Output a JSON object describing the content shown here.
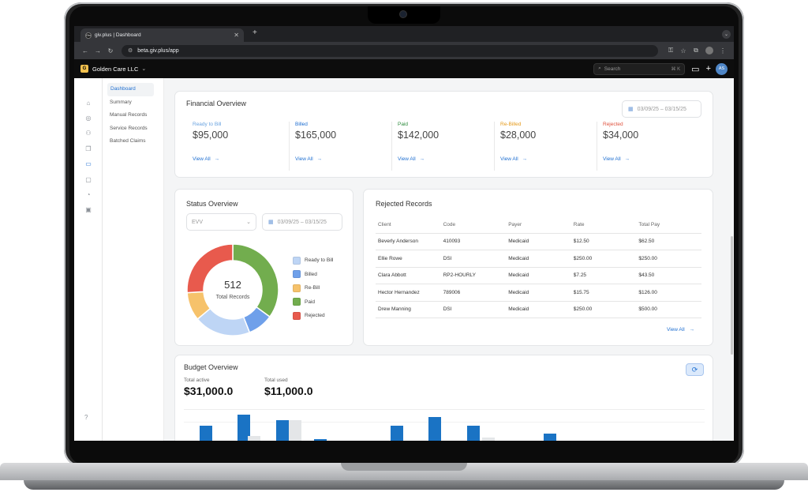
{
  "browser": {
    "tab_title": "giv.plus | Dashboard",
    "tab_favicon": "Giv",
    "url": "beta.giv.plus/app"
  },
  "header": {
    "org_initial": "G",
    "org_name": "Golden Care LLC",
    "search_placeholder": "Search",
    "search_shortcut": "⌘ K",
    "avatar_initials": "AS"
  },
  "sidebar": {
    "items": [
      {
        "label": "Dashboard",
        "active": true
      },
      {
        "label": "Summary"
      },
      {
        "label": "Manual Records"
      },
      {
        "label": "Service Records"
      },
      {
        "label": "Batched Claims"
      }
    ]
  },
  "financial": {
    "title": "Financial Overview",
    "date_range": "03/09/25 – 03/15/25",
    "view_all": "View All",
    "columns": [
      {
        "label": "Ready to Bill",
        "value": "$95,000",
        "color": "#6aa3e0"
      },
      {
        "label": "Billed",
        "value": "$165,000",
        "color": "#1f6fd1"
      },
      {
        "label": "Paid",
        "value": "$142,000",
        "color": "#2e8b3e"
      },
      {
        "label": "Re-Billed",
        "value": "$28,000",
        "color": "#e59a1a"
      },
      {
        "label": "Rejected",
        "value": "$34,000",
        "color": "#e0533f"
      }
    ]
  },
  "status": {
    "title": "Status Overview",
    "filter_value": "EVV",
    "date_range": "03/09/25 – 03/15/25",
    "total_value": "512",
    "total_label": "Total Records",
    "legend": [
      {
        "label": "Ready to Bill",
        "color": "#bed5f5",
        "share": 0.2
      },
      {
        "label": "Billed",
        "color": "#6fa0ea",
        "share": 0.09
      },
      {
        "label": "Re-Bill",
        "color": "#f6c26b",
        "share": 0.1
      },
      {
        "label": "Paid",
        "color": "#72ad4e",
        "share": 0.35
      },
      {
        "label": "Rejected",
        "color": "#e85a4d",
        "share": 0.26
      }
    ]
  },
  "rejected": {
    "title": "Rejected Records",
    "headers": [
      "Client",
      "Code",
      "Payer",
      "Rate",
      "Total Pay"
    ],
    "rows": [
      [
        "Beverly Anderson",
        "410093",
        "Medicaid",
        "$12.50",
        "$62.50"
      ],
      [
        "Ellie Rowe",
        "DSI",
        "Medicaid",
        "$250.00",
        "$250.00"
      ],
      [
        "Clara Abbott",
        "RP2-HOURLY",
        "Medicaid",
        "$7.25",
        "$43.50"
      ],
      [
        "Hector Hernandez",
        "789006",
        "Medicaid",
        "$15.75",
        "$126.00"
      ],
      [
        "Drew Manning",
        "DSI",
        "Medicaid",
        "$250.00",
        "$500.00"
      ]
    ],
    "view_all": "View All"
  },
  "budget": {
    "title": "Budget Overview",
    "total_active_label": "Total active",
    "total_active": "$31,000.0",
    "total_used_label": "Total used",
    "total_used": "$11,000.0"
  },
  "icons": [
    "home-icon",
    "search-icon",
    "users-icon",
    "layers-icon",
    "card-icon",
    "message-icon",
    "chart-icon",
    "report-icon",
    "help-icon",
    "refresh-icon",
    "calendar-icon",
    "arrow-right-icon"
  ]
}
